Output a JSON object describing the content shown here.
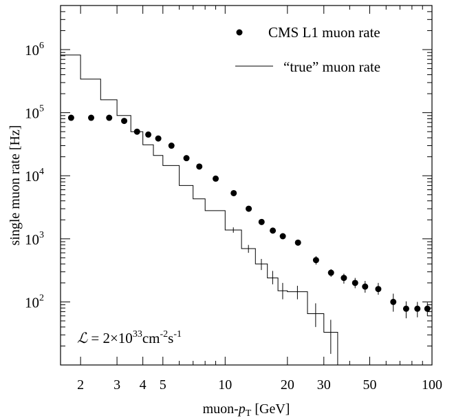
{
  "chart_data": {
    "type": "scatter",
    "xlabel": "muon-pT [GeV]",
    "xlabel_main": "muon-",
    "xlabel_var": "p",
    "xlabel_sub": "T",
    "xlabel_unit": " [GeV]",
    "ylabel": "single muon rate [Hz]",
    "xscale": "log",
    "yscale": "log",
    "xlim": [
      1.6,
      100
    ],
    "ylim": [
      10,
      5000000
    ],
    "grid": false,
    "legend_position": "top-right",
    "x_ticks": [
      {
        "value": 2,
        "label": "2"
      },
      {
        "value": 3,
        "label": "3"
      },
      {
        "value": 4,
        "label": "4"
      },
      {
        "value": 5,
        "label": "5"
      },
      {
        "value": 10,
        "label": "10"
      },
      {
        "value": 20,
        "label": "20"
      },
      {
        "value": 30,
        "label": "30"
      },
      {
        "value": 50,
        "label": "50"
      },
      {
        "value": 100,
        "label": "100"
      }
    ],
    "y_ticks": [
      {
        "value": 100,
        "base": "10",
        "exp": "2"
      },
      {
        "value": 1000,
        "base": "10",
        "exp": "3"
      },
      {
        "value": 10000,
        "base": "10",
        "exp": "4"
      },
      {
        "value": 100000,
        "base": "10",
        "exp": "5"
      },
      {
        "value": 1000000,
        "base": "10",
        "exp": "6"
      }
    ],
    "annotation": {
      "symbol": "ℒ",
      "equals": " = 2×10",
      "exp1": "33",
      "unit1": "cm",
      "exp2": "-2",
      "unit2": "s",
      "exp3": "-1"
    },
    "series": [
      {
        "name": "CMS L1 muon rate",
        "kind": "points",
        "points": [
          {
            "x": 1.8,
            "y": 83000
          },
          {
            "x": 2.25,
            "y": 83000
          },
          {
            "x": 2.75,
            "y": 83000
          },
          {
            "x": 3.25,
            "y": 74000
          },
          {
            "x": 3.75,
            "y": 50000
          },
          {
            "x": 4.25,
            "y": 45000
          },
          {
            "x": 4.75,
            "y": 39000
          },
          {
            "x": 5.5,
            "y": 30000
          },
          {
            "x": 6.5,
            "y": 19000
          },
          {
            "x": 7.5,
            "y": 14000
          },
          {
            "x": 9,
            "y": 9000
          },
          {
            "x": 11,
            "y": 5300
          },
          {
            "x": 13,
            "y": 3000
          },
          {
            "x": 15,
            "y": 1850
          },
          {
            "x": 17,
            "y": 1350
          },
          {
            "x": 19,
            "y": 1100
          },
          {
            "x": 22.5,
            "y": 870
          },
          {
            "x": 27.5,
            "y": 460,
            "err": [
              390,
              530
            ]
          },
          {
            "x": 32.5,
            "y": 290,
            "err": [
              250,
              330
            ]
          },
          {
            "x": 37.5,
            "y": 240,
            "err": [
              195,
              280
            ]
          },
          {
            "x": 42.5,
            "y": 200,
            "err": [
              165,
              240
            ]
          },
          {
            "x": 47.5,
            "y": 175,
            "err": [
              140,
              215
            ]
          },
          {
            "x": 55,
            "y": 160,
            "err": [
              130,
              200
            ]
          },
          {
            "x": 65,
            "y": 100,
            "err": [
              70,
              135
            ]
          },
          {
            "x": 75,
            "y": 78,
            "err": [
              55,
              102
            ]
          },
          {
            "x": 85,
            "y": 78,
            "err": [
              57,
              100
            ]
          },
          {
            "x": 95,
            "y": 78,
            "err": [
              60,
              98
            ]
          }
        ]
      },
      {
        "name": "“true” muon rate",
        "kind": "step",
        "bins": [
          {
            "x0": 1.6,
            "x1": 2.0,
            "y": 820000
          },
          {
            "x0": 2.0,
            "x1": 2.5,
            "y": 340000
          },
          {
            "x0": 2.5,
            "x1": 3.0,
            "y": 160000
          },
          {
            "x0": 3.0,
            "x1": 3.5,
            "y": 90000
          },
          {
            "x0": 3.5,
            "x1": 4.0,
            "y": 50000
          },
          {
            "x0": 4.0,
            "x1": 4.5,
            "y": 31000
          },
          {
            "x0": 4.5,
            "x1": 5.0,
            "y": 21000
          },
          {
            "x0": 5.0,
            "x1": 6.0,
            "y": 14500
          },
          {
            "x0": 6.0,
            "x1": 7.0,
            "y": 7000
          },
          {
            "x0": 7.0,
            "x1": 8.0,
            "y": 4300
          },
          {
            "x0": 8.0,
            "x1": 10.0,
            "y": 2800
          },
          {
            "x0": 10.0,
            "x1": 12.0,
            "y": 1380,
            "err": [
              1250,
              1520
            ]
          },
          {
            "x0": 12.0,
            "x1": 14.0,
            "y": 700,
            "err": [
              600,
              800
            ]
          },
          {
            "x0": 14.0,
            "x1": 16.0,
            "y": 400,
            "err": [
              320,
              480
            ]
          },
          {
            "x0": 16.0,
            "x1": 18.0,
            "y": 240,
            "err": [
              190,
              310
            ]
          },
          {
            "x0": 18.0,
            "x1": 20.0,
            "y": 150,
            "err": [
              110,
              200
            ]
          },
          {
            "x0": 20.0,
            "x1": 25.0,
            "y": 145,
            "err": [
              110,
              180
            ]
          },
          {
            "x0": 25.0,
            "x1": 30.0,
            "y": 65,
            "err": [
              40,
              95
            ]
          },
          {
            "x0": 30.0,
            "x1": 35.0,
            "y": 33,
            "err": [
              15,
              52
            ]
          }
        ]
      }
    ]
  }
}
